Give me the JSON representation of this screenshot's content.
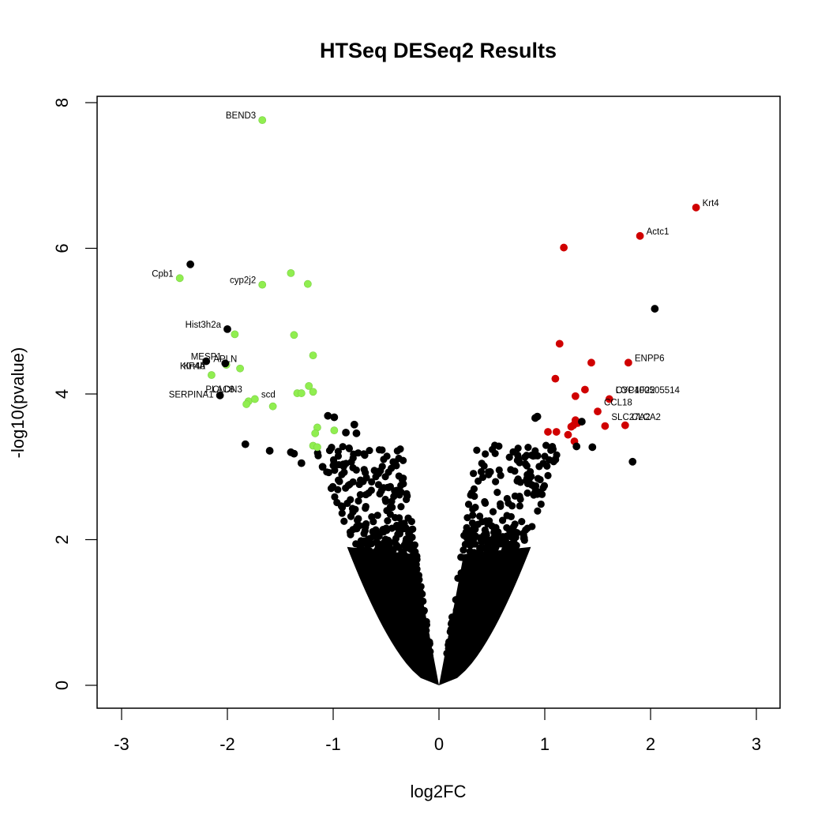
{
  "chart_data": {
    "type": "scatter",
    "title": "HTSeq DESeq2 Results",
    "xlabel": "log2FC",
    "ylabel": "-log10(pvalue)",
    "xlim": [
      -3.2,
      3.2
    ],
    "ylim": [
      -0.3,
      8.1
    ],
    "xticks": [
      -3,
      -2,
      -1,
      0,
      1,
      2,
      3
    ],
    "yticks": [
      0,
      2,
      4,
      6,
      8
    ],
    "grid": false,
    "legend": null,
    "colors": {
      "not_significant": "#000000",
      "down_significant": "#90EE50",
      "up_significant": "#D00000"
    },
    "series": [
      {
        "name": "down-regulated (significant)",
        "color": "#90EE50",
        "points": [
          [
            -1.67,
            7.76
          ],
          [
            -2.45,
            5.59
          ],
          [
            -1.67,
            5.5
          ],
          [
            -1.4,
            5.66
          ],
          [
            -1.24,
            5.51
          ],
          [
            -1.93,
            4.82
          ],
          [
            -1.37,
            4.81
          ],
          [
            -1.19,
            4.53
          ],
          [
            -2.01,
            4.4
          ],
          [
            -1.88,
            4.35
          ],
          [
            -2.15,
            4.26
          ],
          [
            -1.23,
            4.11
          ],
          [
            -1.34,
            4.01
          ],
          [
            -1.3,
            4.01
          ],
          [
            -1.19,
            4.03
          ],
          [
            -1.8,
            3.9
          ],
          [
            -1.74,
            3.93
          ],
          [
            -1.82,
            3.86
          ],
          [
            -1.57,
            3.83
          ],
          [
            -1.15,
            3.54
          ],
          [
            -1.17,
            3.46
          ],
          [
            -0.99,
            3.5
          ],
          [
            -1.19,
            3.29
          ],
          [
            -1.15,
            3.27
          ]
        ]
      },
      {
        "name": "up-regulated (significant)",
        "color": "#D00000",
        "points": [
          [
            2.43,
            6.56
          ],
          [
            1.9,
            6.17
          ],
          [
            1.18,
            6.01
          ],
          [
            1.14,
            4.69
          ],
          [
            1.44,
            4.43
          ],
          [
            1.79,
            4.43
          ],
          [
            1.1,
            4.21
          ],
          [
            1.38,
            4.06
          ],
          [
            1.29,
            3.97
          ],
          [
            1.61,
            3.93
          ],
          [
            1.5,
            3.76
          ],
          [
            1.29,
            3.64
          ],
          [
            1.27,
            3.57
          ],
          [
            1.25,
            3.55
          ],
          [
            1.31,
            3.6
          ],
          [
            1.57,
            3.56
          ],
          [
            1.76,
            3.57
          ],
          [
            1.03,
            3.48
          ],
          [
            1.11,
            3.48
          ],
          [
            1.22,
            3.44
          ],
          [
            1.28,
            3.35
          ]
        ]
      },
      {
        "name": "not significant (outliers)",
        "color": "#000000",
        "points": [
          [
            -2.35,
            5.78
          ],
          [
            -2.0,
            4.89
          ],
          [
            -2.2,
            4.45
          ],
          [
            -2.02,
            4.42
          ],
          [
            -2.07,
            3.98
          ],
          [
            -1.05,
            3.7
          ],
          [
            -0.99,
            3.68
          ],
          [
            -0.8,
            3.58
          ],
          [
            -0.78,
            3.46
          ],
          [
            -0.88,
            3.47
          ],
          [
            -1.83,
            3.31
          ],
          [
            -1.4,
            3.2
          ],
          [
            -1.37,
            3.18
          ],
          [
            2.04,
            5.17
          ],
          [
            1.35,
            3.62
          ],
          [
            0.91,
            3.67
          ],
          [
            0.93,
            3.69
          ],
          [
            1.83,
            3.07
          ],
          [
            1.45,
            3.27
          ],
          [
            1.3,
            3.28
          ],
          [
            -1.6,
            3.22
          ],
          [
            -1.3,
            3.05
          ],
          [
            -1.1,
            3.0
          ],
          [
            0.75,
            3.1
          ],
          [
            1.1,
            3.1
          ]
        ]
      }
    ],
    "annotations": [
      {
        "text": "BEND3",
        "x": -1.67,
        "y": 7.76,
        "side": "left"
      },
      {
        "text": "Krt4",
        "x": 2.43,
        "y": 6.56,
        "side": "right"
      },
      {
        "text": "Actc1",
        "x": 1.9,
        "y": 6.17,
        "side": "right"
      },
      {
        "text": "Cpb1",
        "x": -2.45,
        "y": 5.59,
        "side": "left"
      },
      {
        "text": "cyp2j2",
        "x": -1.67,
        "y": 5.5,
        "side": "left"
      },
      {
        "text": "Hist3h2a",
        "x": -2.0,
        "y": 4.89,
        "side": "left"
      },
      {
        "text": "MESP1",
        "x": -2.2,
        "y": 4.45,
        "side": "center"
      },
      {
        "text": "APLN",
        "x": -2.02,
        "y": 4.42,
        "side": "center"
      },
      {
        "text": "KIF4A",
        "x": -2.15,
        "y": 4.32,
        "side": "left"
      },
      {
        "text": "Krt4b",
        "x": -2.15,
        "y": 4.32,
        "side": "left"
      },
      {
        "text": "PLAC8",
        "x": -2.07,
        "y": 4.0,
        "side": "center"
      },
      {
        "text": "CLDN3",
        "x": -2.0,
        "y": 4.0,
        "side": "center"
      },
      {
        "text": "SERPINA1",
        "x": -2.07,
        "y": 3.93,
        "side": "left"
      },
      {
        "text": "scd",
        "x": -1.74,
        "y": 3.93,
        "side": "right"
      },
      {
        "text": "ENPP6",
        "x": 1.79,
        "y": 4.43,
        "side": "right"
      },
      {
        "text": "CYP4F22",
        "x": 1.61,
        "y": 3.99,
        "side": "right"
      },
      {
        "text": "LOC100505514",
        "x": 1.61,
        "y": 3.99,
        "side": "right"
      },
      {
        "text": "CCL18",
        "x": 1.5,
        "y": 3.82,
        "side": "right"
      },
      {
        "text": "SLC27A2",
        "x": 1.57,
        "y": 3.62,
        "side": "right"
      },
      {
        "text": "CLCA2",
        "x": 1.76,
        "y": 3.62,
        "side": "right"
      }
    ],
    "bulk_note": "Thousands of non-significant black points form a dense V-shape converging at (0, 0), spreading to about ±1.1 log2FC at -log10(p)=2 and ±1.6 at 2.7"
  }
}
